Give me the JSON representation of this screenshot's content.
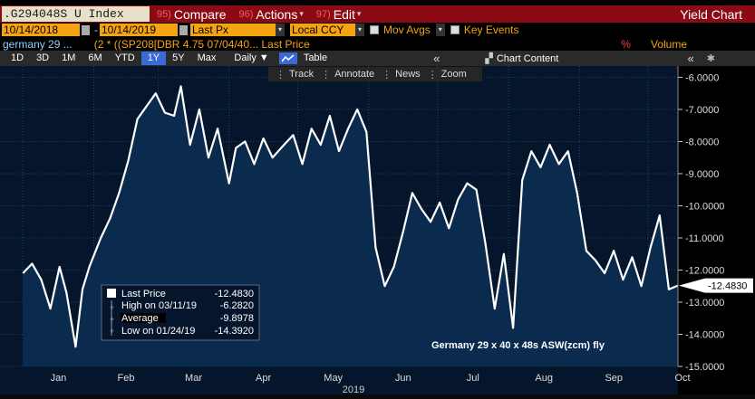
{
  "header": {
    "ticker": ".G294048S U Index",
    "compare": {
      "num": "95)",
      "label": "Compare"
    },
    "actions": {
      "num": "96)",
      "label": "Actions"
    },
    "edit": {
      "num": "97)",
      "label": "Edit"
    },
    "title": "Yield Chart"
  },
  "settings": {
    "start_date": "10/14/2018",
    "end_date": "10/14/2019",
    "field": "Last Px",
    "currency": "Local CCY",
    "mov_avgs": "Mov Avgs",
    "key_events": "Key Events"
  },
  "legend_row": {
    "security": "germany 29 ...",
    "expression": "(2 * ((SP208[DBR 4.75 07/04/40... Last Price",
    "pct": "%",
    "volume": "Volume"
  },
  "periods": [
    "1D",
    "3D",
    "1M",
    "6M",
    "YTD",
    "1Y",
    "5Y",
    "Max"
  ],
  "active_period": "1Y",
  "frequency": "Daily",
  "table_label": "Table",
  "chart_content_label": "Chart Content",
  "chart_toolbar": {
    "track": "Track",
    "annotate": "Annotate",
    "news": "News",
    "zoom": "Zoom"
  },
  "colors": {
    "plot_bg": "#05162c",
    "area_fill": "#0b2b4e",
    "line": "#ffffff",
    "header_red": "#8b0b14",
    "field_orange": "#f4a312",
    "active_blue": "#3a6ad8"
  },
  "chart_data": {
    "type": "area",
    "series": [
      {
        "name": "Germany 29 x 40 x 48s ASW(zcm) fly",
        "x": [
          "2019-01-01",
          "2019-01-05",
          "2019-01-09",
          "2019-01-13",
          "2019-01-17",
          "2019-01-20",
          "2019-01-24",
          "2019-01-27",
          "2019-01-30",
          "2019-02-04",
          "2019-02-08",
          "2019-02-12",
          "2019-02-16",
          "2019-02-20",
          "2019-02-24",
          "2019-02-28",
          "2019-03-04",
          "2019-03-08",
          "2019-03-11",
          "2019-03-15",
          "2019-03-19",
          "2019-03-23",
          "2019-03-27",
          "2019-04-01",
          "2019-04-04",
          "2019-04-08",
          "2019-04-12",
          "2019-04-16",
          "2019-04-20",
          "2019-04-25",
          "2019-04-29",
          "2019-05-03",
          "2019-05-07",
          "2019-05-11",
          "2019-05-15",
          "2019-05-19",
          "2019-05-23",
          "2019-05-27",
          "2019-05-31",
          "2019-06-04",
          "2019-06-08",
          "2019-06-12",
          "2019-06-16",
          "2019-06-20",
          "2019-06-24",
          "2019-06-28",
          "2019-07-02",
          "2019-07-06",
          "2019-07-10",
          "2019-07-14",
          "2019-07-18",
          "2019-07-22",
          "2019-07-26",
          "2019-07-30",
          "2019-08-03",
          "2019-08-07",
          "2019-08-11",
          "2019-08-15",
          "2019-08-19",
          "2019-08-23",
          "2019-08-27",
          "2019-08-31",
          "2019-09-04",
          "2019-09-08",
          "2019-09-12",
          "2019-09-16",
          "2019-09-20",
          "2019-09-24",
          "2019-09-28",
          "2019-10-02",
          "2019-10-06",
          "2019-10-10",
          "2019-10-14"
        ],
        "values": [
          -12.1,
          -11.8,
          -12.3,
          -13.2,
          -11.9,
          -12.7,
          -14.39,
          -12.6,
          -11.9,
          -11.0,
          -10.4,
          -9.6,
          -8.6,
          -7.3,
          -6.9,
          -6.5,
          -7.1,
          -7.2,
          -6.28,
          -8.1,
          -7.0,
          -8.5,
          -7.6,
          -9.3,
          -8.2,
          -8.0,
          -8.7,
          -7.9,
          -8.5,
          -8.1,
          -7.8,
          -8.7,
          -7.6,
          -8.1,
          -7.2,
          -8.3,
          -7.6,
          -7.0,
          -7.7,
          -11.3,
          -12.5,
          -11.9,
          -10.8,
          -9.6,
          -10.1,
          -10.5,
          -9.9,
          -10.7,
          -9.8,
          -9.3,
          -9.5,
          -11.2,
          -13.2,
          -11.5,
          -13.8,
          -9.2,
          -8.3,
          -8.8,
          -8.1,
          -8.7,
          -8.3,
          -9.6,
          -11.4,
          -11.7,
          -12.1,
          -11.4,
          -12.3,
          -11.6,
          -12.5,
          -11.3,
          -10.3,
          -12.6,
          -12.483
        ]
      }
    ],
    "x_ticks": [
      "Jan",
      "Feb",
      "Mar",
      "Apr",
      "May",
      "Jun",
      "Jul",
      "Aug",
      "Sep",
      "Oct"
    ],
    "x_axis_label": "2019",
    "y_ticks": [
      "-6.0000",
      "-7.0000",
      "-8.0000",
      "-9.0000",
      "-10.0000",
      "-11.0000",
      "-12.0000",
      "-13.0000",
      "-14.0000",
      "-15.0000"
    ],
    "ylim": [
      -15,
      -5.65
    ],
    "grid": true,
    "last_value_label": "-12.4830",
    "annotation": "Germany 29 x 40 x 48s ASW(zcm) fly",
    "stats": [
      {
        "label": "Last Price",
        "value": "-12.4830"
      },
      {
        "label": "High on 03/11/19",
        "value": "-6.2820"
      },
      {
        "label": "Average",
        "value": "-9.8978"
      },
      {
        "label": "Low on 01/24/19",
        "value": "-14.3920"
      }
    ]
  }
}
